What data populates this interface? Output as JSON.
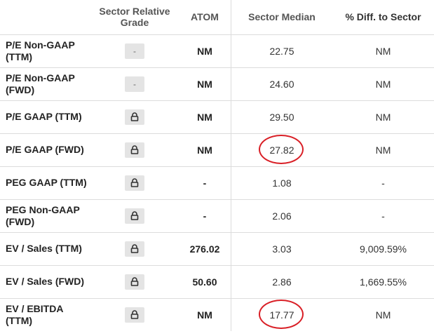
{
  "headers": {
    "metric": "",
    "grade": "Sector Relative Grade",
    "atom": "ATOM",
    "median": "Sector Median",
    "diff": "% Diff. to Sector"
  },
  "rows": [
    {
      "metric": "P/E Non-GAAP (TTM)",
      "grade": "-",
      "grade_icon": "dash",
      "atom": "NM",
      "median": "22.75",
      "diff": "NM",
      "highlighted": false
    },
    {
      "metric": "P/E Non-GAAP (FWD)",
      "grade": "-",
      "grade_icon": "dash",
      "atom": "NM",
      "median": "24.60",
      "diff": "NM",
      "highlighted": false
    },
    {
      "metric": "P/E GAAP (TTM)",
      "grade": "",
      "grade_icon": "lock-icon",
      "atom": "NM",
      "median": "29.50",
      "diff": "NM",
      "highlighted": false
    },
    {
      "metric": "P/E GAAP (FWD)",
      "grade": "",
      "grade_icon": "lock-icon",
      "atom": "NM",
      "median": "27.82",
      "diff": "NM",
      "highlighted": true
    },
    {
      "metric": "PEG GAAP (TTM)",
      "grade": "",
      "grade_icon": "lock-icon",
      "atom": "-",
      "median": "1.08",
      "diff": "-",
      "highlighted": false
    },
    {
      "metric": "PEG Non-GAAP (FWD)",
      "grade": "",
      "grade_icon": "lock-icon",
      "atom": "-",
      "median": "2.06",
      "diff": "-",
      "highlighted": false
    },
    {
      "metric": "EV / Sales (TTM)",
      "grade": "",
      "grade_icon": "lock-icon",
      "atom": "276.02",
      "median": "3.03",
      "diff": "9,009.59%",
      "highlighted": false
    },
    {
      "metric": "EV / Sales (FWD)",
      "grade": "",
      "grade_icon": "lock-icon",
      "atom": "50.60",
      "median": "2.86",
      "diff": "1,669.55%",
      "highlighted": false
    },
    {
      "metric": "EV / EBITDA (TTM)",
      "grade": "",
      "grade_icon": "lock-icon",
      "atom": "NM",
      "median": "17.77",
      "diff": "NM",
      "highlighted": true
    }
  ],
  "colors": {
    "highlight_ring": "#d91f26",
    "grade_box": "#e4e4e4"
  }
}
